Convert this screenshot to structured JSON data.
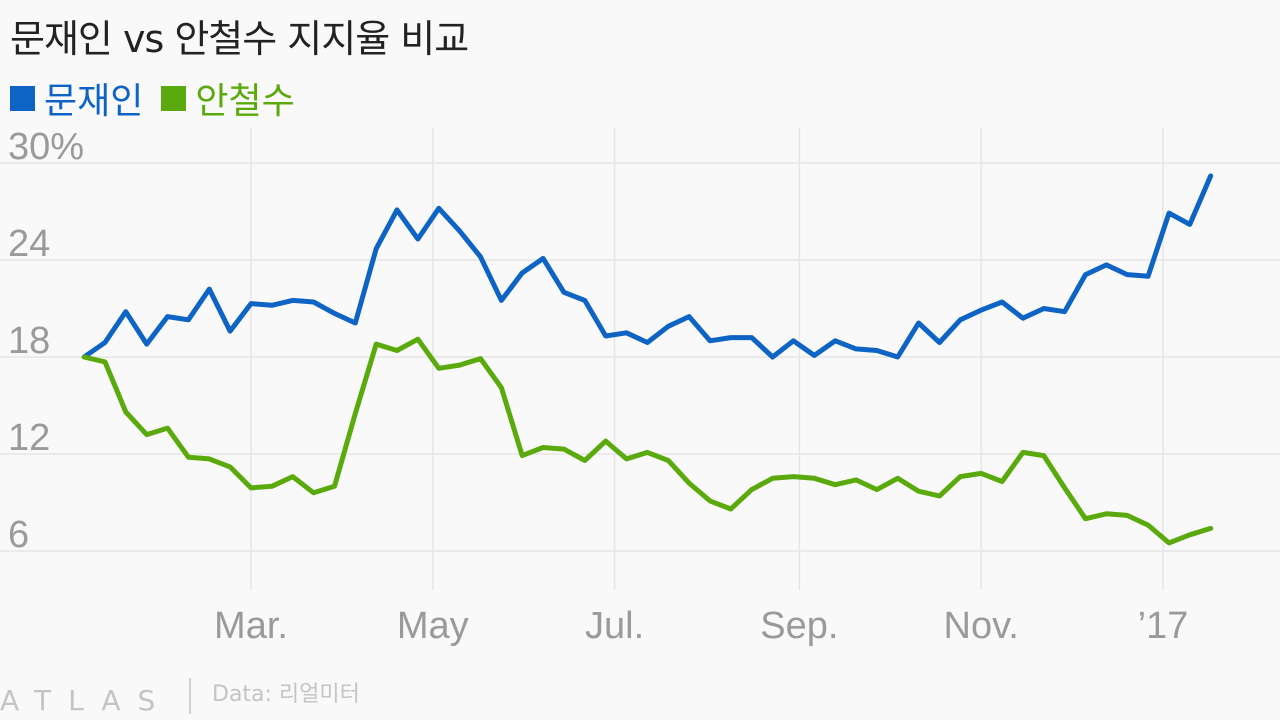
{
  "chart_data": {
    "type": "line",
    "title": "문재인 vs 안철수 지지율 비교",
    "y_tick_labels": [
      "30%",
      "24",
      "18",
      "12",
      "6"
    ],
    "y_ticks": [
      30,
      24,
      18,
      12,
      6
    ],
    "ylim": [
      3.5,
      32
    ],
    "x_tick_labels": [
      "Mar.",
      "May",
      "Jul.",
      "Sep.",
      "Nov.",
      "’17"
    ],
    "x_ticks": [
      "2016-03-01",
      "2016-05-01",
      "2016-07-01",
      "2016-09-01",
      "2016-11-01",
      "2017-01-01"
    ],
    "xlim": [
      "2016-01-01",
      "2017-01-31"
    ],
    "grid": true,
    "legend_position": "top-left",
    "series": [
      {
        "name": "문재인",
        "color": "#0e64c4",
        "points": [
          [
            "2016-01-05",
            18.0
          ],
          [
            "2016-01-12",
            18.9
          ],
          [
            "2016-01-19",
            20.8
          ],
          [
            "2016-01-26",
            18.8
          ],
          [
            "2016-02-02",
            20.5
          ],
          [
            "2016-02-09",
            20.3
          ],
          [
            "2016-02-16",
            22.2
          ],
          [
            "2016-02-23",
            19.6
          ],
          [
            "2016-03-01",
            21.3
          ],
          [
            "2016-03-08",
            21.2
          ],
          [
            "2016-03-15",
            21.5
          ],
          [
            "2016-03-22",
            21.4
          ],
          [
            "2016-03-29",
            20.7
          ],
          [
            "2016-04-05",
            20.1
          ],
          [
            "2016-04-12",
            24.7
          ],
          [
            "2016-04-19",
            27.1
          ],
          [
            "2016-04-26",
            25.3
          ],
          [
            "2016-05-03",
            27.2
          ],
          [
            "2016-05-10",
            25.8
          ],
          [
            "2016-05-17",
            24.2
          ],
          [
            "2016-05-24",
            21.5
          ],
          [
            "2016-05-31",
            23.2
          ],
          [
            "2016-06-07",
            24.1
          ],
          [
            "2016-06-14",
            22.0
          ],
          [
            "2016-06-21",
            21.5
          ],
          [
            "2016-06-28",
            19.3
          ],
          [
            "2016-07-05",
            19.5
          ],
          [
            "2016-07-12",
            18.9
          ],
          [
            "2016-07-19",
            19.9
          ],
          [
            "2016-07-26",
            20.5
          ],
          [
            "2016-08-02",
            19.0
          ],
          [
            "2016-08-09",
            19.2
          ],
          [
            "2016-08-16",
            19.2
          ],
          [
            "2016-08-23",
            18.0
          ],
          [
            "2016-08-30",
            19.0
          ],
          [
            "2016-09-06",
            18.1
          ],
          [
            "2016-09-13",
            19.0
          ],
          [
            "2016-09-20",
            18.5
          ],
          [
            "2016-09-27",
            18.4
          ],
          [
            "2016-10-04",
            18.0
          ],
          [
            "2016-10-11",
            20.1
          ],
          [
            "2016-10-18",
            18.9
          ],
          [
            "2016-10-25",
            20.3
          ],
          [
            "2016-11-01",
            20.9
          ],
          [
            "2016-11-08",
            21.4
          ],
          [
            "2016-11-15",
            20.4
          ],
          [
            "2016-11-22",
            21.0
          ],
          [
            "2016-11-29",
            20.8
          ],
          [
            "2016-12-06",
            23.1
          ],
          [
            "2016-12-13",
            23.7
          ],
          [
            "2016-12-20",
            23.1
          ],
          [
            "2016-12-27",
            23.0
          ],
          [
            "2017-01-03",
            26.9
          ],
          [
            "2017-01-10",
            26.2
          ],
          [
            "2017-01-17",
            29.2
          ]
        ]
      },
      {
        "name": "안철수",
        "color": "#5aaa0d",
        "points": [
          [
            "2016-01-05",
            18.0
          ],
          [
            "2016-01-12",
            17.7
          ],
          [
            "2016-01-19",
            14.6
          ],
          [
            "2016-01-26",
            13.2
          ],
          [
            "2016-02-02",
            13.6
          ],
          [
            "2016-02-09",
            11.8
          ],
          [
            "2016-02-16",
            11.7
          ],
          [
            "2016-02-23",
            11.2
          ],
          [
            "2016-03-01",
            9.9
          ],
          [
            "2016-03-08",
            10.0
          ],
          [
            "2016-03-15",
            10.6
          ],
          [
            "2016-03-22",
            9.6
          ],
          [
            "2016-03-29",
            10.0
          ],
          [
            "2016-04-05",
            14.5
          ],
          [
            "2016-04-12",
            18.8
          ],
          [
            "2016-04-19",
            18.4
          ],
          [
            "2016-04-26",
            19.1
          ],
          [
            "2016-05-03",
            17.3
          ],
          [
            "2016-05-10",
            17.5
          ],
          [
            "2016-05-17",
            17.9
          ],
          [
            "2016-05-24",
            16.1
          ],
          [
            "2016-05-31",
            11.9
          ],
          [
            "2016-06-07",
            12.4
          ],
          [
            "2016-06-14",
            12.3
          ],
          [
            "2016-06-21",
            11.6
          ],
          [
            "2016-06-28",
            12.8
          ],
          [
            "2016-07-05",
            11.7
          ],
          [
            "2016-07-12",
            12.1
          ],
          [
            "2016-07-19",
            11.6
          ],
          [
            "2016-07-26",
            10.2
          ],
          [
            "2016-08-02",
            9.1
          ],
          [
            "2016-08-09",
            8.6
          ],
          [
            "2016-08-16",
            9.8
          ],
          [
            "2016-08-23",
            10.5
          ],
          [
            "2016-08-30",
            10.6
          ],
          [
            "2016-09-06",
            10.5
          ],
          [
            "2016-09-13",
            10.1
          ],
          [
            "2016-09-20",
            10.4
          ],
          [
            "2016-09-27",
            9.8
          ],
          [
            "2016-10-04",
            10.5
          ],
          [
            "2016-10-11",
            9.7
          ],
          [
            "2016-10-18",
            9.4
          ],
          [
            "2016-10-25",
            10.6
          ],
          [
            "2016-11-01",
            10.8
          ],
          [
            "2016-11-08",
            10.3
          ],
          [
            "2016-11-15",
            12.1
          ],
          [
            "2016-11-22",
            11.9
          ],
          [
            "2016-11-29",
            9.9
          ],
          [
            "2016-12-06",
            8.0
          ],
          [
            "2016-12-13",
            8.3
          ],
          [
            "2016-12-20",
            8.2
          ],
          [
            "2016-12-27",
            7.6
          ],
          [
            "2017-01-03",
            6.5
          ],
          [
            "2017-01-10",
            7.0
          ],
          [
            "2017-01-17",
            7.4
          ]
        ]
      }
    ]
  },
  "footer": {
    "brand": "ATLAS",
    "source": "Data: 리얼미터"
  },
  "colors": {
    "grid": "#e6e6e6",
    "tick_text": "#9a9a9a",
    "background": "#f9f9f9"
  }
}
